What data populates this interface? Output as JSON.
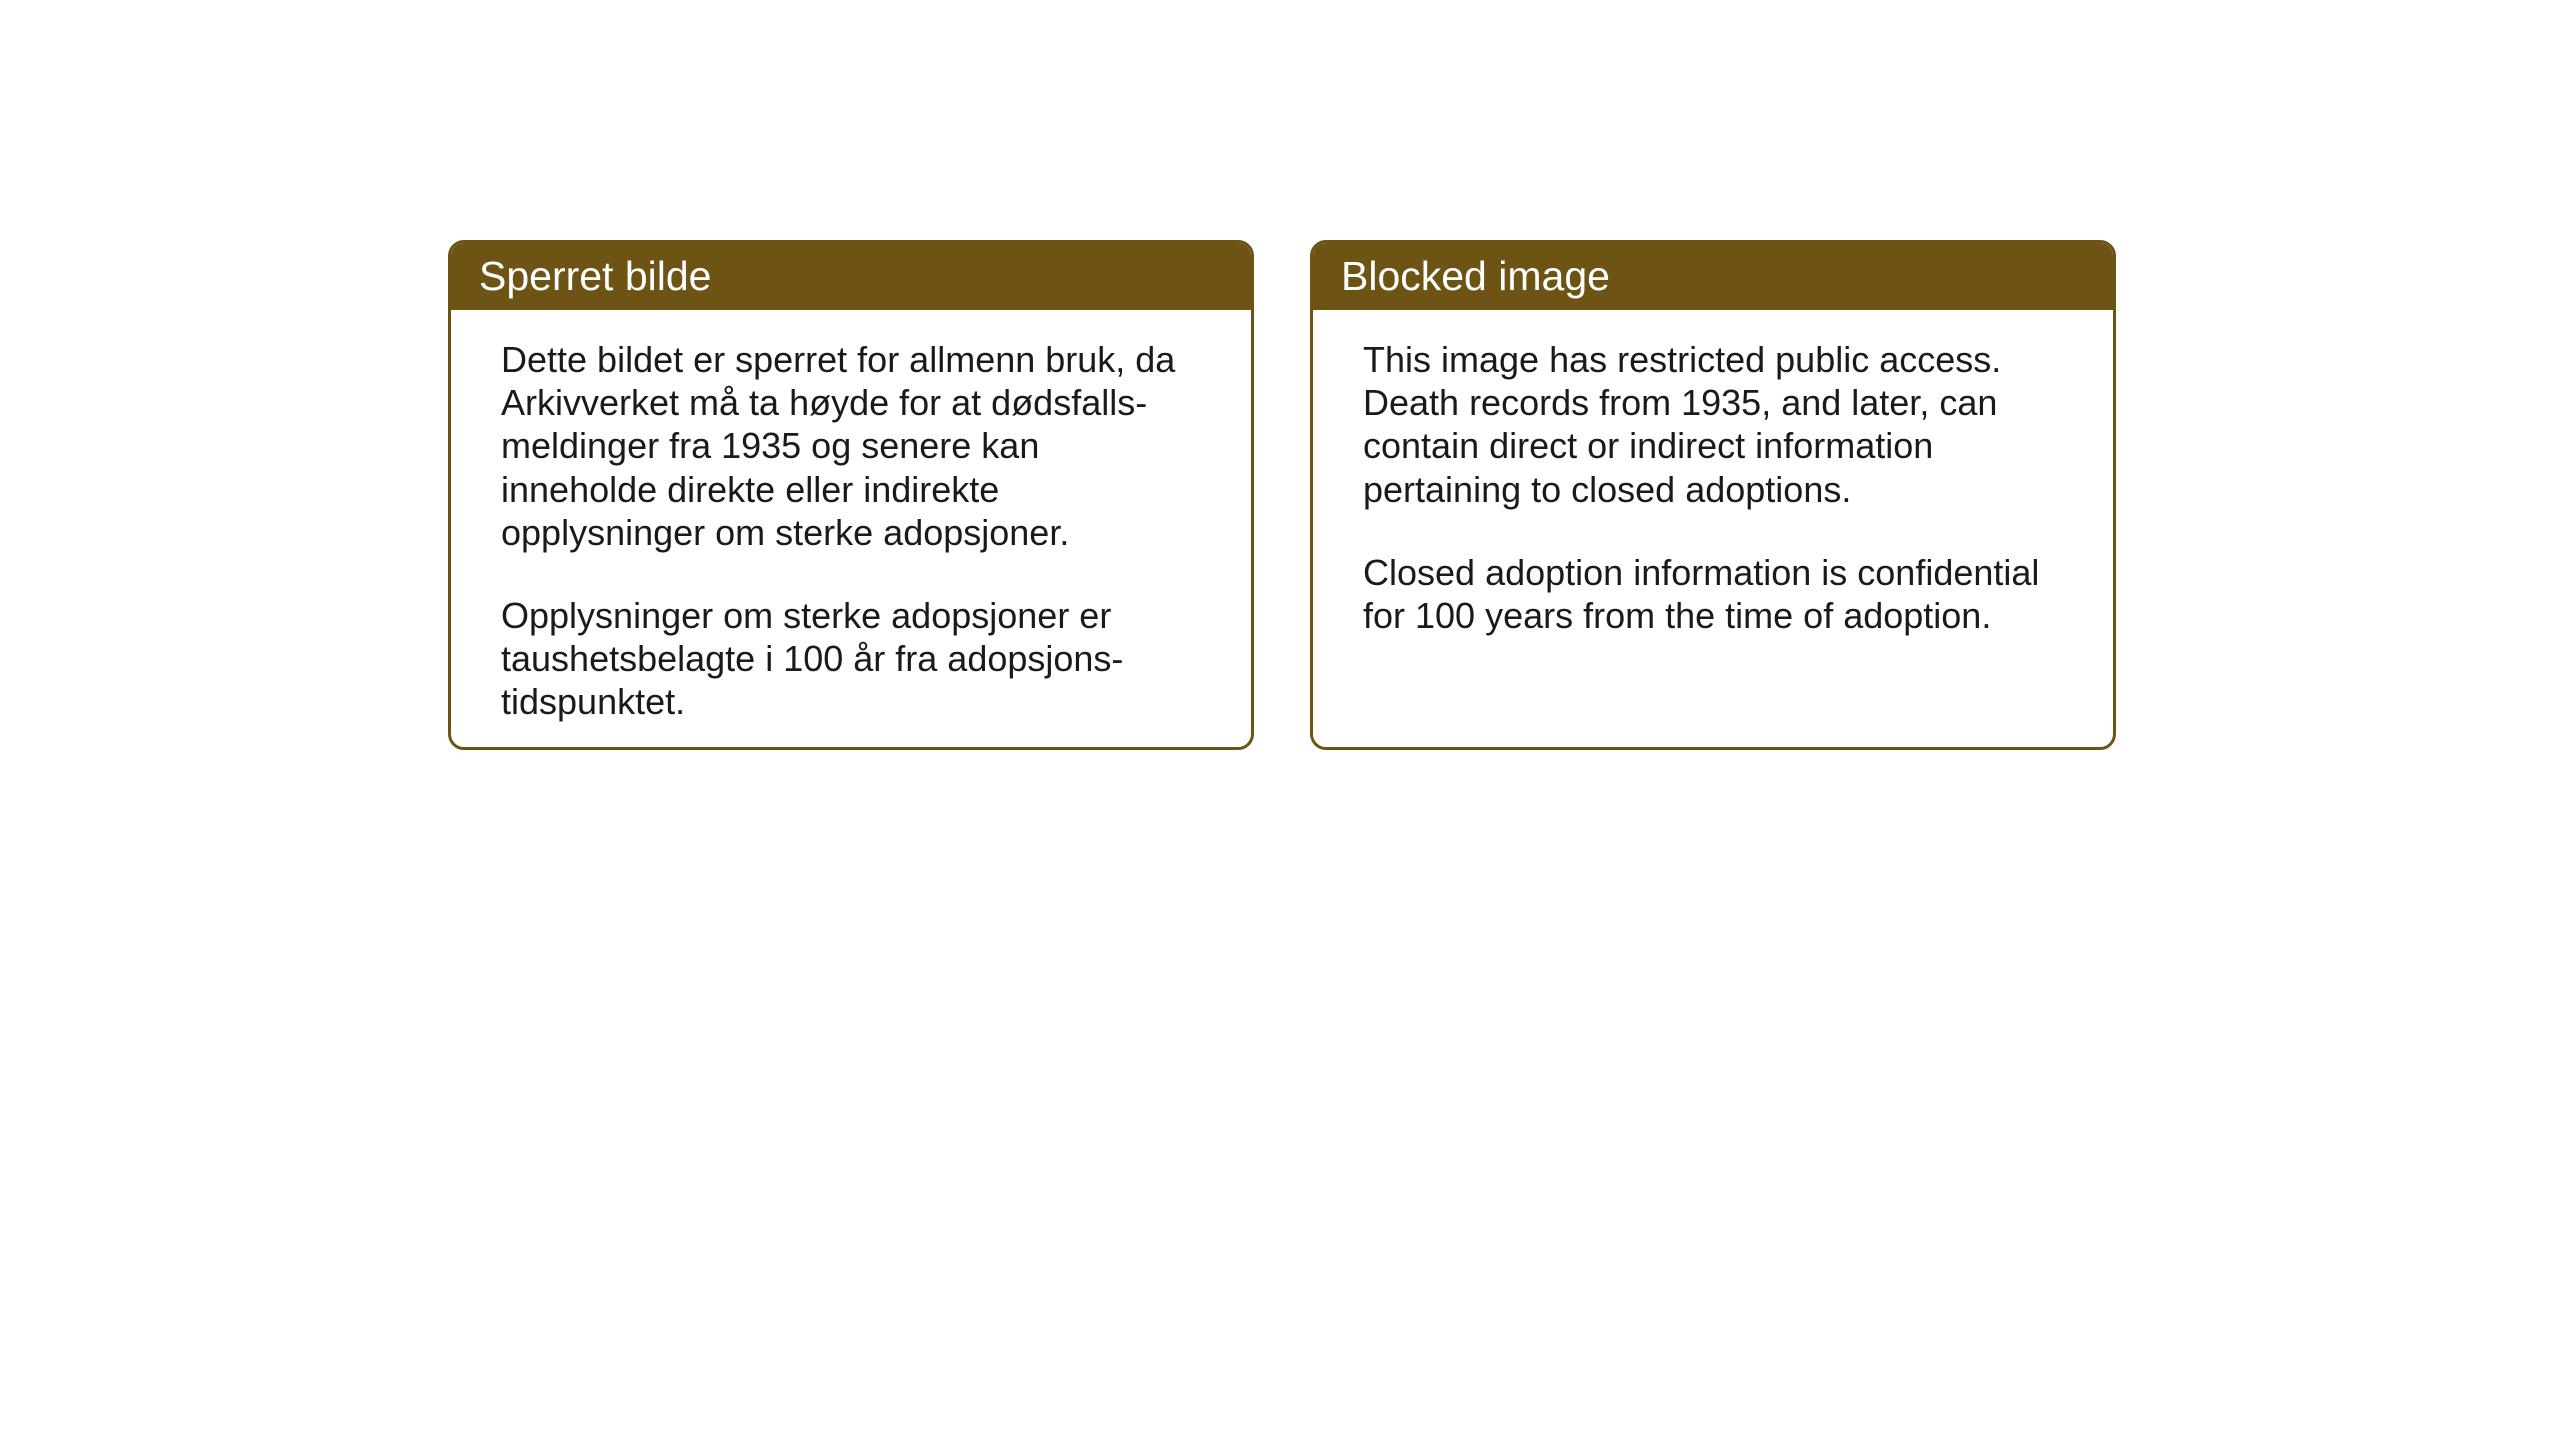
{
  "boxes": {
    "norwegian": {
      "header": "Sperret bilde",
      "paragraph1": "Dette bildet er sperret for allmenn bruk, da Arkivverket må ta høyde for at dødsfalls-meldinger fra 1935 og senere kan inneholde direkte eller indirekte opplysninger om sterke adopsjoner.",
      "paragraph2": "Opplysninger om sterke adopsjoner er taushetsbelagte i 100 år fra adopsjons-tidspunktet."
    },
    "english": {
      "header": "Blocked image",
      "paragraph1": "This image has restricted public access. Death records from 1935, and later, can contain direct or indirect information pertaining to closed adoptions.",
      "paragraph2": "Closed adoption information is confidential for 100 years from the time of adoption."
    }
  },
  "styling": {
    "header_background": "#6d5414",
    "header_text_color": "#ffffff",
    "border_color": "#6d5414",
    "body_background": "#ffffff",
    "body_text_color": "#1a1a1a",
    "header_fontsize": 41,
    "body_fontsize": 36,
    "border_radius": 16,
    "border_width": 3
  }
}
